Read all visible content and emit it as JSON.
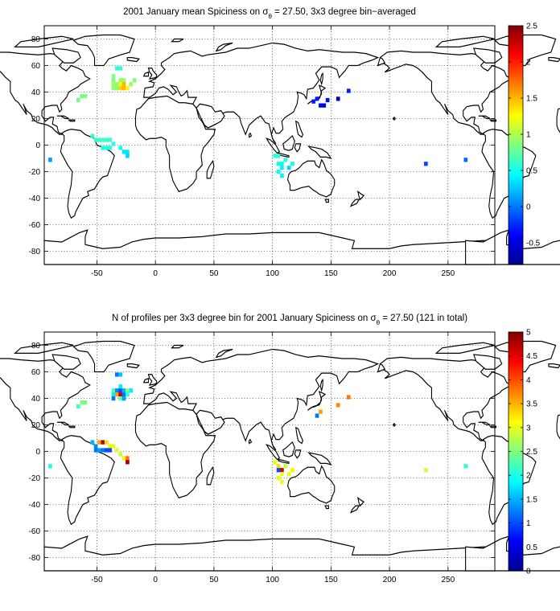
{
  "panels": [
    {
      "title_main": "2001 January mean Spiciness on σ",
      "title_sub": "θ",
      "title_tail": " = 27.50, 3x3 degree bin−averaged",
      "x_ticks": [
        -50,
        0,
        50,
        100,
        150,
        200,
        250
      ],
      "y_ticks": [
        80,
        60,
        40,
        20,
        0,
        -20,
        -40,
        -60,
        -80
      ],
      "xlim": [
        -95,
        290
      ],
      "ylim": [
        -90,
        90
      ],
      "colorbar": {
        "min": -0.8,
        "max": 2.5,
        "ticks": [
          "2.5",
          "2",
          "1.5",
          "1",
          "0.5",
          "0",
          "-0.5"
        ],
        "tick_values": [
          2.5,
          2,
          1.5,
          1,
          0.5,
          0,
          -0.5
        ]
      },
      "bins": [
        [
          -33,
          58,
          0.6
        ],
        [
          -30,
          58,
          0.6
        ],
        [
          -36,
          52,
          0.85
        ],
        [
          -36,
          49,
          0.85
        ],
        [
          -36,
          46,
          0.95
        ],
        [
          -36,
          43,
          0.9
        ],
        [
          -33,
          46,
          0.9
        ],
        [
          -33,
          43,
          0.85
        ],
        [
          -30,
          49,
          0.9
        ],
        [
          -30,
          46,
          1.2
        ],
        [
          -30,
          43,
          1.4
        ],
        [
          -27,
          49,
          0.95
        ],
        [
          -27,
          46,
          1.5
        ],
        [
          -27,
          43,
          1.5
        ],
        [
          -24,
          43,
          1.3
        ],
        [
          -21,
          46,
          0.95
        ],
        [
          -18,
          49,
          0.85
        ],
        [
          -63,
          37,
          0.8
        ],
        [
          -60,
          37,
          0.85
        ],
        [
          -66,
          34,
          0.8
        ],
        [
          -54,
          7,
          0.6
        ],
        [
          -51,
          4,
          0.6
        ],
        [
          -48,
          4,
          0.6
        ],
        [
          -45,
          4,
          0.65
        ],
        [
          -42,
          4,
          0.6
        ],
        [
          -39,
          4,
          0.6
        ],
        [
          -36,
          1,
          0.55
        ],
        [
          -45,
          -2,
          0.5
        ],
        [
          -42,
          -2,
          0.55
        ],
        [
          -39,
          -2,
          0.5
        ],
        [
          -30,
          -2,
          0.45
        ],
        [
          -27,
          -5,
          0.35
        ],
        [
          -24,
          -5,
          0.35
        ],
        [
          -24,
          -8,
          0.3
        ],
        [
          -90,
          -11,
          0.1
        ],
        [
          102,
          -8,
          0.55
        ],
        [
          105,
          -8,
          0.6
        ],
        [
          111,
          -11,
          0.55
        ],
        [
          105,
          -14,
          0.5
        ],
        [
          108,
          -14,
          0.45
        ],
        [
          108,
          -17,
          0.4
        ],
        [
          105,
          -20,
          0.45
        ],
        [
          108,
          -23,
          0.4
        ],
        [
          117,
          -14,
          0.45
        ],
        [
          114,
          -17,
          0.3
        ],
        [
          138,
          35,
          -0.3
        ],
        [
          141,
          30,
          -0.45
        ],
        [
          144,
          30,
          -0.5
        ],
        [
          135,
          33,
          -0.3
        ],
        [
          156,
          35,
          -0.55
        ],
        [
          165,
          41,
          -0.3
        ],
        [
          147,
          34,
          -0.35
        ],
        [
          231,
          -14,
          -0.15
        ],
        [
          265,
          -11,
          -0.05
        ]
      ]
    },
    {
      "title_main": "N of profiles per 3x3 degree bin for 2001 January Spiciness on σ",
      "title_sub": "θ",
      "title_tail": " = 27.50 (121 in total)",
      "x_ticks": [
        -50,
        0,
        50,
        100,
        150,
        200,
        250
      ],
      "y_ticks": [
        80,
        60,
        40,
        20,
        0,
        -20,
        -40,
        -60,
        -80
      ],
      "xlim": [
        -95,
        290
      ],
      "ylim": [
        -90,
        90
      ],
      "colorbar": {
        "min": 0,
        "max": 5,
        "ticks": [
          "5",
          "4.5",
          "4",
          "3.5",
          "3",
          "2.5",
          "2",
          "1.5",
          "1",
          "0.5",
          "0"
        ],
        "tick_values": [
          5,
          4.5,
          4,
          3.5,
          3,
          2.5,
          2,
          1.5,
          1,
          0.5,
          0
        ]
      },
      "bins": [
        [
          -33,
          58,
          1.2
        ],
        [
          -30,
          58,
          1.6
        ],
        [
          -36,
          46,
          2.2
        ],
        [
          -36,
          43,
          1.8
        ],
        [
          -33,
          46,
          1.3
        ],
        [
          -33,
          43,
          3.6
        ],
        [
          -30,
          46,
          1.0
        ],
        [
          -30,
          43,
          4.6
        ],
        [
          -27,
          46,
          1.5
        ],
        [
          -27,
          43,
          1.2
        ],
        [
          -30,
          49,
          1.8
        ],
        [
          -24,
          46,
          2.6
        ],
        [
          -24,
          43,
          2.0
        ],
        [
          -21,
          46,
          1.8
        ],
        [
          -36,
          40,
          1.2
        ],
        [
          -30,
          40,
          2.3
        ],
        [
          -27,
          40,
          1.4
        ],
        [
          -63,
          37,
          2.5
        ],
        [
          -60,
          37,
          2.5
        ],
        [
          -66,
          34,
          2.2
        ],
        [
          -54,
          7,
          1.5
        ],
        [
          -51,
          4,
          1.3
        ],
        [
          -48,
          7,
          3.6
        ],
        [
          -45,
          7,
          4.8
        ],
        [
          -42,
          7,
          3.3
        ],
        [
          -39,
          4,
          3.2
        ],
        [
          -36,
          4,
          3.0
        ],
        [
          -51,
          1,
          1.2
        ],
        [
          -48,
          1,
          1.4
        ],
        [
          -45,
          1,
          1.2
        ],
        [
          -42,
          1,
          1.0
        ],
        [
          -39,
          1,
          1.0
        ],
        [
          -33,
          1,
          3.0
        ],
        [
          -30,
          -2,
          2.8
        ],
        [
          -27,
          -5,
          3.2
        ],
        [
          -24,
          -5,
          3.8
        ],
        [
          -24,
          -8,
          4.8
        ],
        [
          -90,
          -11,
          2.0
        ],
        [
          102,
          -8,
          3.0
        ],
        [
          105,
          -11,
          3.3
        ],
        [
          105,
          -14,
          1.0
        ],
        [
          108,
          -14,
          4.6
        ],
        [
          111,
          -11,
          2.8
        ],
        [
          108,
          -17,
          3.0
        ],
        [
          105,
          -20,
          3.0
        ],
        [
          108,
          -23,
          3.0
        ],
        [
          114,
          -17,
          3.0
        ],
        [
          117,
          -14,
          3.2
        ],
        [
          138,
          27,
          1.2
        ],
        [
          141,
          30,
          3.6
        ],
        [
          156,
          35,
          3.7
        ],
        [
          165,
          41,
          3.8
        ],
        [
          231,
          -14,
          2.9
        ],
        [
          265,
          -11,
          2.1
        ]
      ]
    }
  ]
}
